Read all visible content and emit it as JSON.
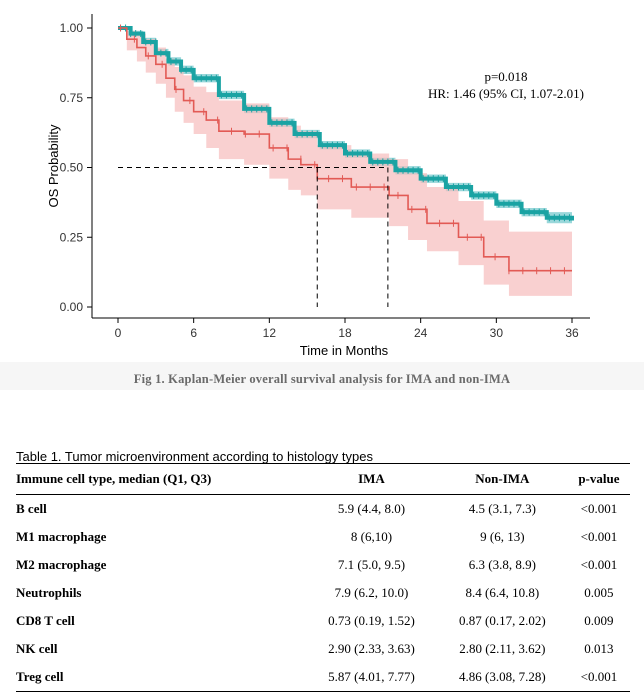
{
  "figure": {
    "caption": "Fig 1. Kaplan-Meier overall survival analysis for IMA and non-IMA"
  },
  "chart_data": {
    "type": "line",
    "xlabel": "Time in Months",
    "ylabel": "OS Probability",
    "xlim": [
      0,
      36
    ],
    "ylim": [
      0,
      1
    ],
    "xticks": [
      0,
      6,
      12,
      18,
      24,
      30,
      36
    ],
    "yticks": [
      "0.00",
      "0.25",
      "0.50",
      "0.75",
      "1.00"
    ],
    "grid": false,
    "annotations": [
      "p=0.018",
      "HR: 1.46 (95% CI, 1.07-2.01)"
    ],
    "medians": [
      15.8,
      21.4
    ],
    "series": [
      {
        "color": "#1aa3a3",
        "band_color": "#8fd3d6",
        "x": [
          0,
          1,
          2,
          3,
          4,
          5,
          6,
          8,
          10,
          12,
          14,
          16,
          18,
          20,
          22,
          24,
          26,
          28,
          30,
          32,
          34,
          36
        ],
        "y": [
          1.0,
          0.98,
          0.95,
          0.91,
          0.88,
          0.85,
          0.82,
          0.76,
          0.71,
          0.66,
          0.62,
          0.58,
          0.55,
          0.52,
          0.49,
          0.46,
          0.43,
          0.4,
          0.37,
          0.34,
          0.32,
          0.31
        ],
        "lower": [
          1.0,
          0.97,
          0.94,
          0.9,
          0.865,
          0.835,
          0.805,
          0.745,
          0.695,
          0.645,
          0.605,
          0.565,
          0.535,
          0.505,
          0.475,
          0.445,
          0.415,
          0.385,
          0.355,
          0.325,
          0.3,
          0.29
        ],
        "upper": [
          1.0,
          0.99,
          0.965,
          0.925,
          0.895,
          0.865,
          0.835,
          0.775,
          0.725,
          0.675,
          0.635,
          0.595,
          0.565,
          0.535,
          0.505,
          0.475,
          0.445,
          0.415,
          0.385,
          0.355,
          0.34,
          0.33
        ]
      },
      {
        "color": "#e25a55",
        "band_color": "#f7bcbc",
        "x": [
          0,
          0.7,
          1.5,
          2.2,
          3.0,
          3.8,
          4.5,
          5.2,
          6.0,
          7.0,
          8.0,
          10.0,
          12.0,
          13.5,
          14.5,
          15.8,
          18.5,
          21.5,
          23.0,
          24.5,
          27.0,
          29.0,
          31.0,
          36.0
        ],
        "y": [
          1.0,
          0.96,
          0.93,
          0.9,
          0.87,
          0.82,
          0.78,
          0.74,
          0.7,
          0.67,
          0.63,
          0.62,
          0.57,
          0.53,
          0.51,
          0.46,
          0.43,
          0.4,
          0.35,
          0.3,
          0.25,
          0.18,
          0.13,
          0.13
        ],
        "lower": [
          1.0,
          0.92,
          0.88,
          0.84,
          0.8,
          0.75,
          0.7,
          0.66,
          0.62,
          0.57,
          0.53,
          0.51,
          0.46,
          0.42,
          0.4,
          0.35,
          0.32,
          0.29,
          0.24,
          0.2,
          0.15,
          0.08,
          0.04,
          0.04
        ],
        "upper": [
          1.0,
          0.99,
          0.98,
          0.96,
          0.93,
          0.89,
          0.86,
          0.83,
          0.79,
          0.77,
          0.74,
          0.73,
          0.68,
          0.65,
          0.63,
          0.58,
          0.55,
          0.53,
          0.48,
          0.43,
          0.38,
          0.31,
          0.27,
          0.27
        ]
      }
    ]
  },
  "table": {
    "title": "Table 1. Tumor microenvironment according to histology types",
    "headers": [
      "Immune cell type, median (Q1, Q3)",
      "IMA",
      "Non-IMA",
      "p-value"
    ],
    "rows": [
      [
        "B cell",
        "5.9 (4.4, 8.0)",
        "4.5 (3.1, 7.3)",
        "<0.001"
      ],
      [
        "M1 macrophage",
        "8 (6,10)",
        "9 (6, 13)",
        "<0.001"
      ],
      [
        "M2 macrophage",
        "7.1 (5.0, 9.5)",
        "6.3 (3.8, 8.9)",
        "<0.001"
      ],
      [
        "Neutrophils",
        "7.9 (6.2, 10.0)",
        "8.4 (6.4, 10.8)",
        "0.005"
      ],
      [
        "CD8 T cell",
        "0.73 (0.19, 1.52)",
        "0.87 (0.17, 2.02)",
        "0.009"
      ],
      [
        "NK cell",
        "2.90 (2.33, 3.63)",
        "2.80 (2.11, 3.62)",
        "0.013"
      ],
      [
        "Treg cell",
        "5.87 (4.01, 7.77)",
        "4.86 (3.08, 7.28)",
        "<0.001"
      ]
    ]
  }
}
